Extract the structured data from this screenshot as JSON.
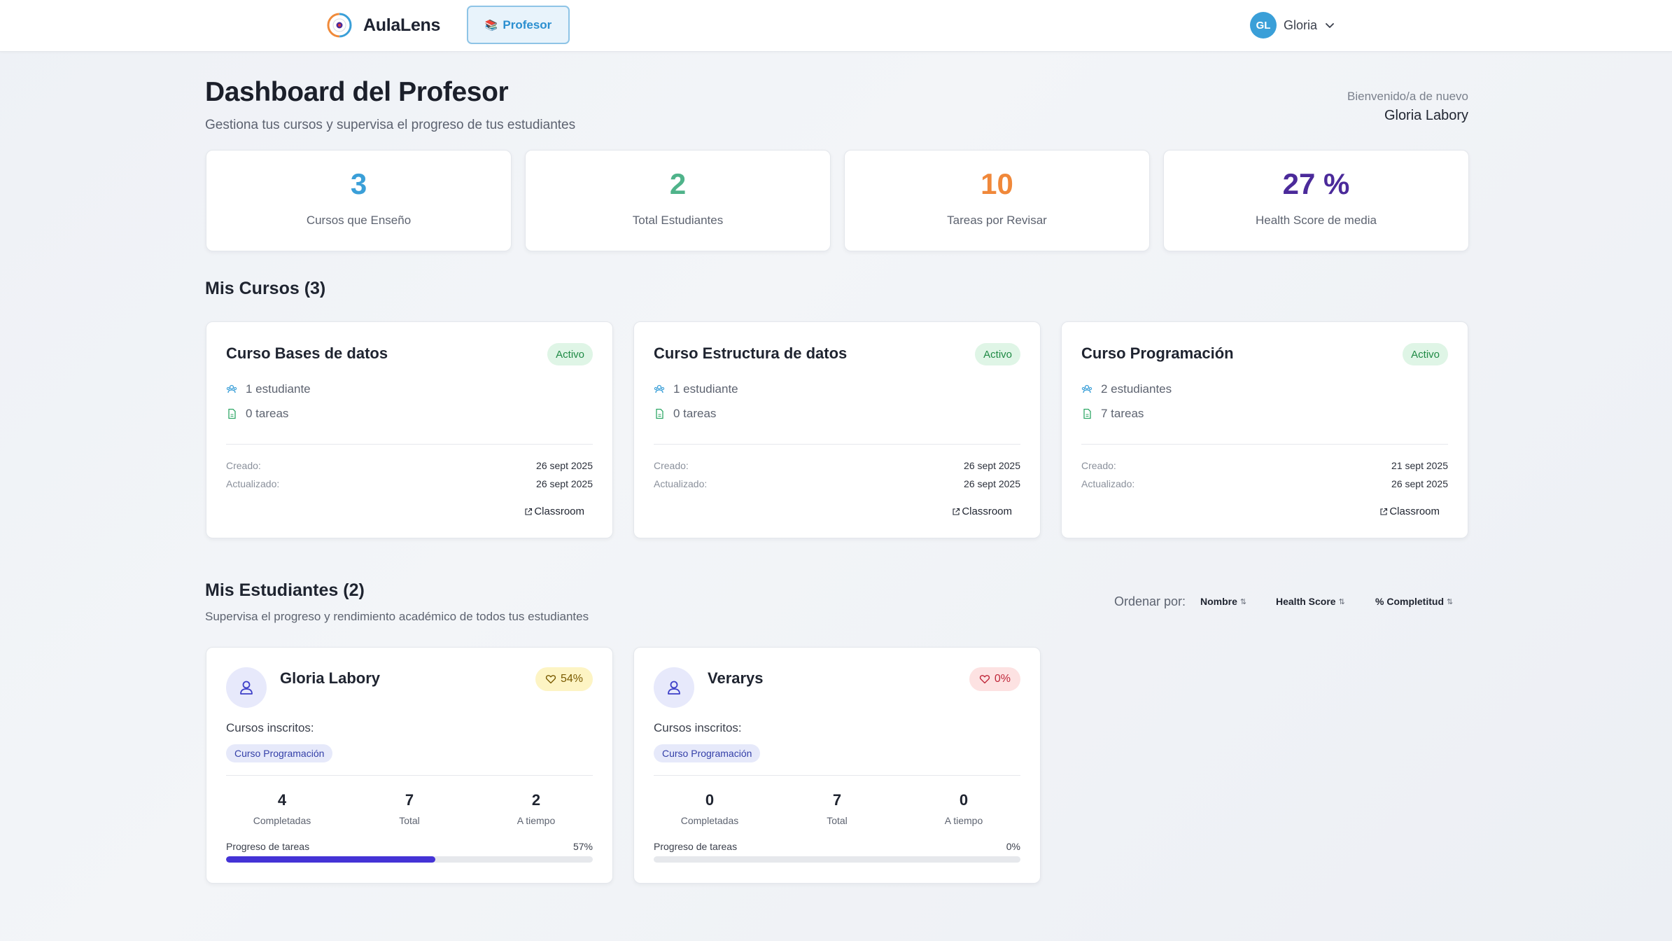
{
  "nav": {
    "brand_name": "AulaLens",
    "role_label": "Profesor",
    "user_initials": "GL",
    "user_name": "Gloria"
  },
  "header": {
    "title": "Dashboard del Profesor",
    "subtitle": "Gestiona tus cursos y supervisa el progreso de tus estudiantes",
    "welcome_label": "Bienvenido/a de nuevo",
    "welcome_name": "Gloria Labory"
  },
  "stats": [
    {
      "value": "3",
      "label": "Cursos que Enseño",
      "color": "#3a9fd8"
    },
    {
      "value": "2",
      "label": "Total Estudiantes",
      "color": "#4fb38a"
    },
    {
      "value": "10",
      "label": "Tareas por Revisar",
      "color": "#f0883a"
    },
    {
      "value": "27 %",
      "label": "Health Score de media",
      "color": "#4b2a9a"
    }
  ],
  "courses_section": {
    "title": "Mis Cursos (3)",
    "created_label": "Creado:",
    "updated_label": "Actualizado:",
    "classroom_label": "Classroom",
    "active_label": "Activo"
  },
  "courses": [
    {
      "name": "Curso Bases de datos",
      "students": "1 estudiante",
      "tasks": "0 tareas",
      "created": "26 sept 2025",
      "updated": "26 sept 2025"
    },
    {
      "name": "Curso Estructura de datos",
      "students": "1 estudiante",
      "tasks": "0 tareas",
      "created": "26 sept 2025",
      "updated": "26 sept 2025"
    },
    {
      "name": "Curso Programación",
      "students": "2 estudiantes",
      "tasks": "7 tareas",
      "created": "21 sept 2025",
      "updated": "26 sept 2025"
    }
  ],
  "students_section": {
    "title": "Mis Estudiantes (2)",
    "subtitle": "Supervisa el progreso y rendimiento académico de todos tus estudiantes",
    "sort_label": "Ordenar por:",
    "sort_name": "Nombre",
    "sort_health": "Health Score",
    "sort_completion": "% Completitud",
    "enrolled_label": "Cursos inscritos:",
    "completed_label": "Completadas",
    "total_label": "Total",
    "ontime_label": "A tiempo",
    "progress_label": "Progreso de tareas"
  },
  "students": [
    {
      "name": "Gloria Labory",
      "health": "54%",
      "health_bg": "#fdf4c4",
      "health_color": "#7a5b00",
      "course": "Curso Programación",
      "completed": "4",
      "total": "7",
      "ontime": "2",
      "progress_text": "57%",
      "progress": 0.57
    },
    {
      "name": "Verarys",
      "health": "0%",
      "health_bg": "#fde2e2",
      "health_color": "#c0283a",
      "course": "Curso Programación",
      "completed": "0",
      "total": "7",
      "ontime": "0",
      "progress_text": "0%",
      "progress": 0
    }
  ]
}
